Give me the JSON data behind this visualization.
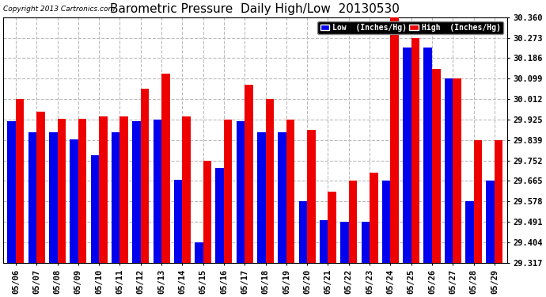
{
  "title": "Barometric Pressure  Daily High/Low  20130530",
  "copyright": "Copyright 2013 Cartronics.com",
  "dates": [
    "05/06",
    "05/07",
    "05/08",
    "05/09",
    "05/10",
    "05/11",
    "05/12",
    "05/13",
    "05/14",
    "05/15",
    "05/16",
    "05/17",
    "05/18",
    "05/19",
    "05/20",
    "05/21",
    "05/22",
    "05/23",
    "05/24",
    "05/25",
    "05/26",
    "05/27",
    "05/28",
    "05/29"
  ],
  "low": [
    29.92,
    29.87,
    29.87,
    29.84,
    29.775,
    29.87,
    29.92,
    29.925,
    29.67,
    29.404,
    29.72,
    29.92,
    29.87,
    29.87,
    29.578,
    29.5,
    29.491,
    29.491,
    29.665,
    30.23,
    30.23,
    30.099,
    29.578,
    29.665
  ],
  "high": [
    30.012,
    29.96,
    29.93,
    29.93,
    29.94,
    29.94,
    30.055,
    30.12,
    29.94,
    29.752,
    29.925,
    30.073,
    30.012,
    29.925,
    29.88,
    29.62,
    29.665,
    29.7,
    30.36,
    30.273,
    30.14,
    30.099,
    29.839,
    29.839
  ],
  "ylim_min": 29.317,
  "ylim_max": 30.36,
  "yticks": [
    29.317,
    29.404,
    29.491,
    29.578,
    29.665,
    29.752,
    29.839,
    29.925,
    30.012,
    30.099,
    30.186,
    30.273,
    30.36
  ],
  "bar_color_low": "#0000ee",
  "bar_color_high": "#ee0000",
  "background_color": "#ffffff",
  "grid_color": "#bbbbbb",
  "title_fontsize": 11,
  "legend_label_low": "Low  (Inches/Hg)",
  "legend_label_high": "High  (Inches/Hg)",
  "legend_facecolor": "#000000"
}
